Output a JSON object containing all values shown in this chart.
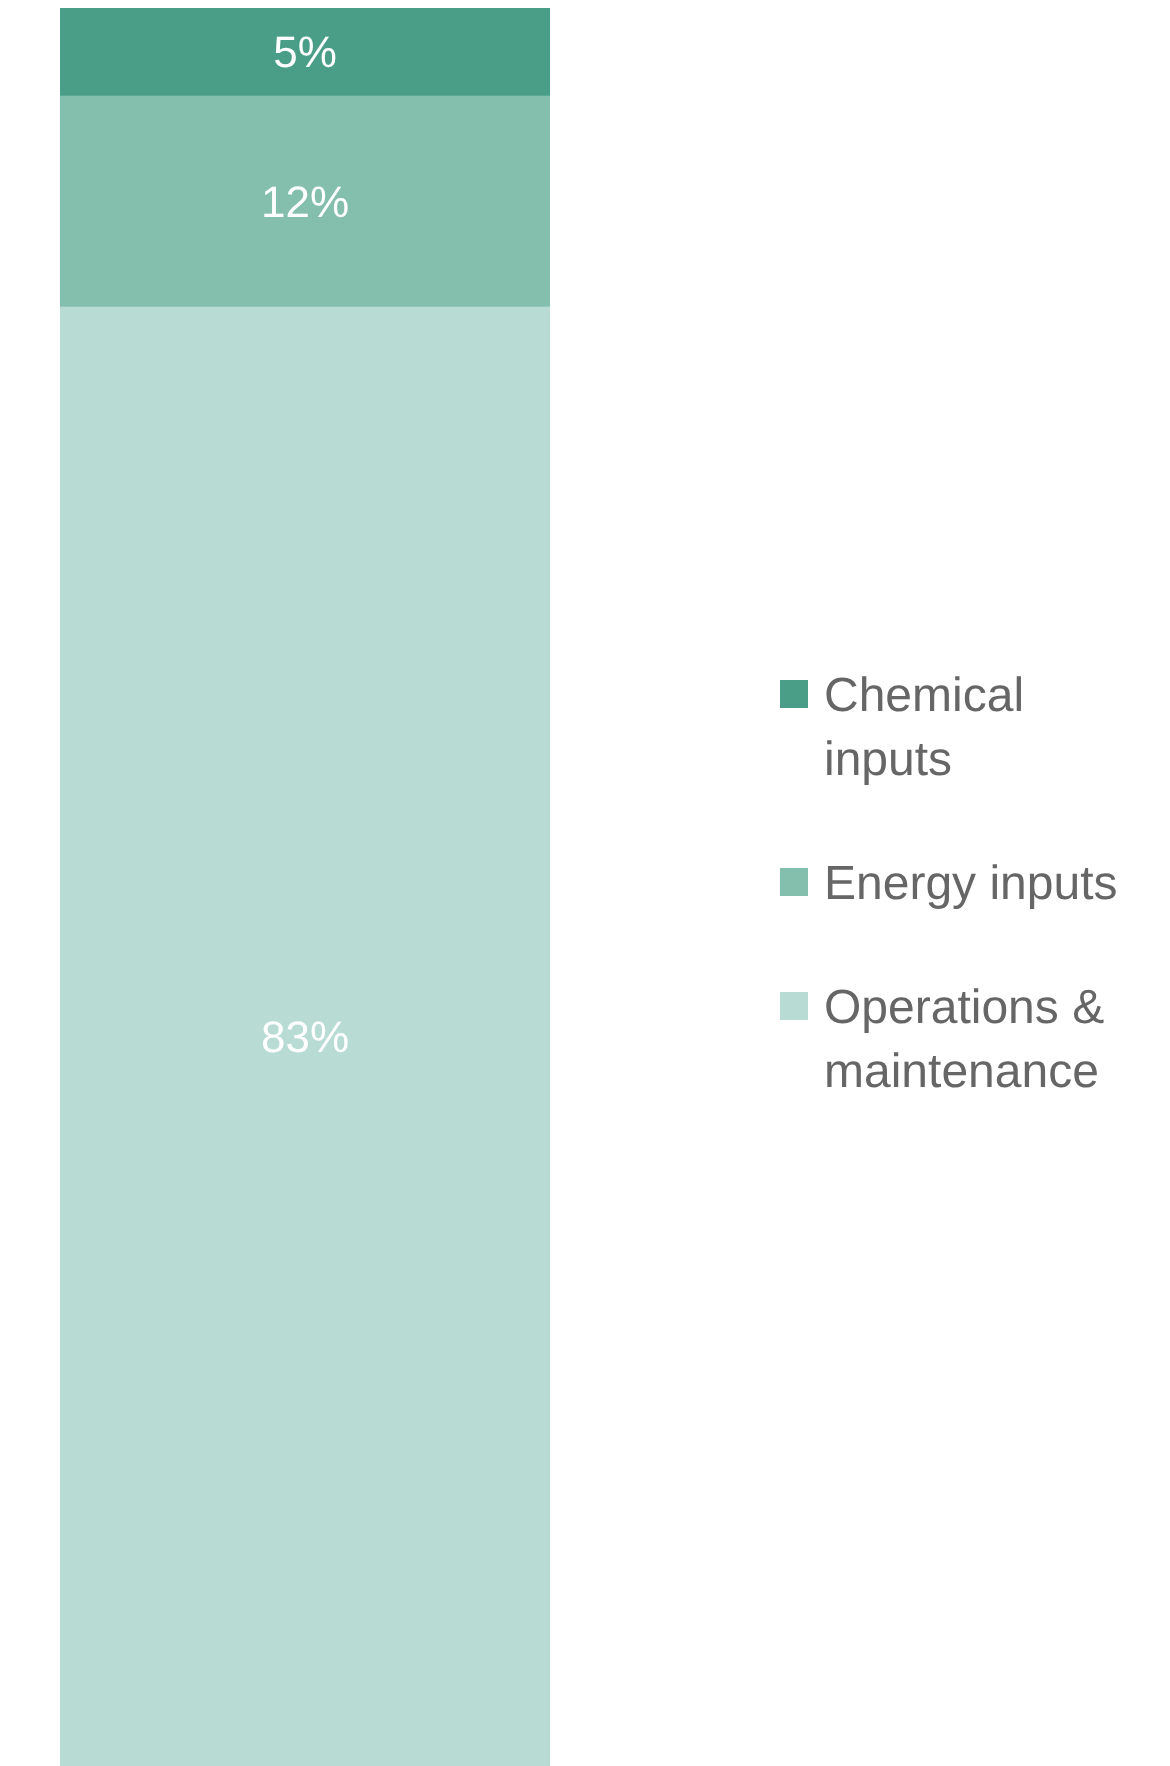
{
  "chart_data": {
    "type": "bar",
    "stacked": true,
    "categories": [
      null
    ],
    "series": [
      {
        "name": "Operations & maintenance",
        "color": "#b8dbd4",
        "values": [
          83
        ],
        "value_labels": [
          "83%"
        ]
      },
      {
        "name": "Energy inputs",
        "color": "#84bfad",
        "values": [
          12
        ],
        "value_labels": [
          "12%"
        ]
      },
      {
        "name": "Chemical inputs",
        "color": "#4a9e88",
        "values": [
          5
        ],
        "value_labels": [
          "5%"
        ]
      }
    ],
    "legend": "right"
  }
}
